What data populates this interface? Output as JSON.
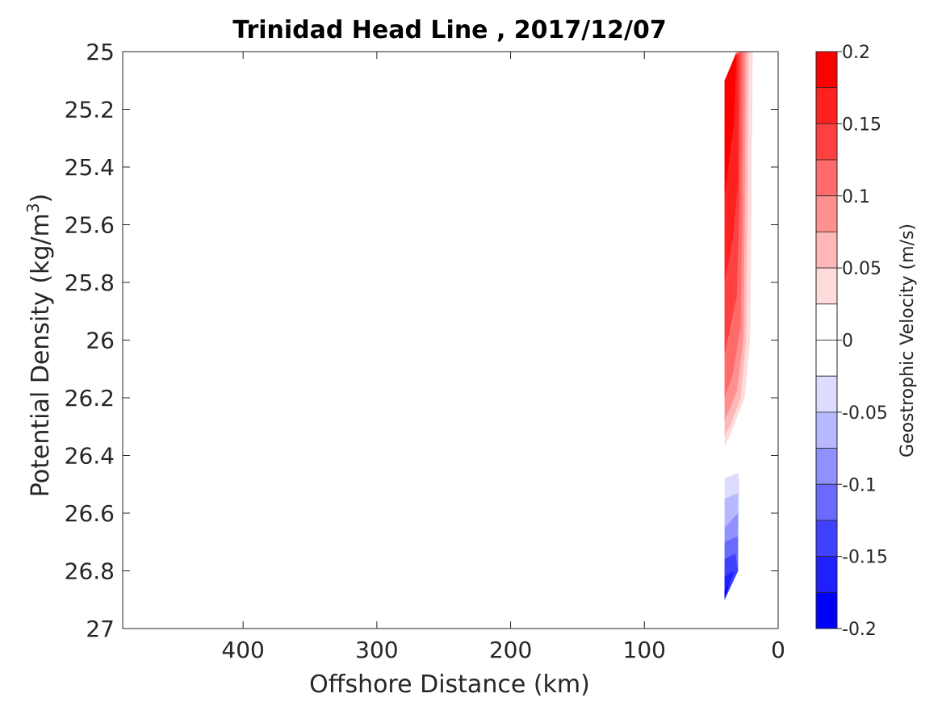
{
  "chart_data": {
    "type": "contourf",
    "title": "Trinidad Head Line , 2017/12/07",
    "xlabel": "Offshore Distance (km)",
    "ylabel_main": "Potential Density (kg/m",
    "ylabel_sup": "3",
    "ylabel_close": ")",
    "xlim": [
      490,
      0
    ],
    "x_reversed": true,
    "ylim": [
      25,
      27
    ],
    "y_reversed": true,
    "xticks": [
      400,
      300,
      200,
      100,
      0
    ],
    "xtick_labels": [
      "400",
      "300",
      "200",
      "100",
      "0"
    ],
    "yticks": [
      25,
      25.2,
      25.4,
      25.6,
      25.8,
      26,
      26.2,
      26.4,
      26.6,
      26.8,
      27
    ],
    "ytick_labels": [
      "25",
      "25.2",
      "25.4",
      "25.6",
      "25.8",
      "26",
      "26.2",
      "26.4",
      "26.6",
      "26.8",
      "27"
    ],
    "colorbar": {
      "label": "Geostrophic Velocity (m/s)",
      "range": [
        -0.2,
        0.2
      ],
      "ticks": [
        0.2,
        0.15,
        0.1,
        0.05,
        0,
        -0.05,
        -0.1,
        -0.15,
        -0.2
      ],
      "tick_labels": [
        "0.2",
        "0.15",
        "0.1",
        "0.05",
        "0",
        "-0.05",
        "-0.1",
        "-0.15",
        "-0.2"
      ],
      "levels": [
        {
          "from": 0.175,
          "to": 0.2,
          "color": "#ff0000"
        },
        {
          "from": 0.15,
          "to": 0.175,
          "color": "#ff2020"
        },
        {
          "from": 0.125,
          "to": 0.15,
          "color": "#ff4040"
        },
        {
          "from": 0.1,
          "to": 0.125,
          "color": "#ff6a6a"
        },
        {
          "from": 0.075,
          "to": 0.1,
          "color": "#ff9090"
        },
        {
          "from": 0.05,
          "to": 0.075,
          "color": "#ffb8b8"
        },
        {
          "from": 0.025,
          "to": 0.05,
          "color": "#ffdcdc"
        },
        {
          "from": 0,
          "to": 0.025,
          "color": "#ffffff"
        },
        {
          "from": -0.025,
          "to": 0,
          "color": "#ffffff"
        },
        {
          "from": -0.05,
          "to": -0.025,
          "color": "#dcdcff"
        },
        {
          "from": -0.075,
          "to": -0.05,
          "color": "#b8b8ff"
        },
        {
          "from": -0.1,
          "to": -0.075,
          "color": "#9090ff"
        },
        {
          "from": -0.125,
          "to": -0.1,
          "color": "#6a6aff"
        },
        {
          "from": -0.15,
          "to": -0.125,
          "color": "#4040ff"
        },
        {
          "from": -0.175,
          "to": -0.15,
          "color": "#2020ff"
        },
        {
          "from": -0.2,
          "to": -0.175,
          "color": "#0000ff"
        }
      ]
    },
    "contour_regions": [
      {
        "name": "positive-0.025",
        "color": "#ffdcdc",
        "points": [
          [
            40,
            25.1
          ],
          [
            26,
            25.0
          ],
          [
            19,
            25.0
          ],
          [
            20,
            25.6
          ],
          [
            21,
            26.0
          ],
          [
            25,
            26.2
          ],
          [
            35,
            26.32
          ],
          [
            40,
            26.37
          ]
        ]
      },
      {
        "name": "positive-0.05",
        "color": "#ffb8b8",
        "points": [
          [
            40,
            25.1
          ],
          [
            26,
            25.0
          ],
          [
            22,
            25.0
          ],
          [
            23,
            25.6
          ],
          [
            24,
            26.0
          ],
          [
            28,
            26.2
          ],
          [
            36,
            26.3
          ],
          [
            40,
            26.33
          ]
        ]
      },
      {
        "name": "positive-0.075",
        "color": "#ff9090",
        "points": [
          [
            40,
            25.1
          ],
          [
            27,
            25.0
          ],
          [
            24,
            25.0
          ],
          [
            25,
            25.6
          ],
          [
            26,
            26.0
          ],
          [
            31,
            26.18
          ],
          [
            40,
            26.28
          ]
        ]
      },
      {
        "name": "positive-0.1",
        "color": "#ff6a6a",
        "points": [
          [
            40,
            25.1
          ],
          [
            28,
            25.0
          ],
          [
            26,
            25.0
          ],
          [
            27,
            25.6
          ],
          [
            28,
            25.95
          ],
          [
            34,
            26.12
          ],
          [
            40,
            26.2
          ]
        ]
      },
      {
        "name": "positive-0.125",
        "color": "#ff4040",
        "points": [
          [
            40,
            25.1
          ],
          [
            29,
            25.0
          ],
          [
            28,
            25.0
          ],
          [
            29,
            25.55
          ],
          [
            31,
            25.85
          ],
          [
            40,
            26.05
          ]
        ]
      },
      {
        "name": "positive-0.15",
        "color": "#ff2020",
        "points": [
          [
            40,
            25.1
          ],
          [
            30,
            25.0
          ],
          [
            30,
            25.45
          ],
          [
            34,
            25.65
          ],
          [
            40,
            25.8
          ]
        ]
      },
      {
        "name": "positive-0.175",
        "color": "#ff0000",
        "points": [
          [
            40,
            25.1
          ],
          [
            31,
            25.0
          ],
          [
            33,
            25.25
          ],
          [
            40,
            25.5
          ]
        ]
      },
      {
        "name": "negative-0.025",
        "color": "#dcdcff",
        "points": [
          [
            40,
            26.48
          ],
          [
            30,
            26.46
          ],
          [
            29,
            26.49
          ],
          [
            30,
            26.8
          ],
          [
            40,
            26.9
          ]
        ]
      },
      {
        "name": "negative-0.05",
        "color": "#b8b8ff",
        "points": [
          [
            40,
            26.55
          ],
          [
            30,
            26.53
          ],
          [
            30,
            26.8
          ],
          [
            40,
            26.9
          ]
        ]
      },
      {
        "name": "negative-0.075",
        "color": "#9090ff",
        "points": [
          [
            40,
            26.65
          ],
          [
            30,
            26.6
          ],
          [
            30,
            26.8
          ],
          [
            40,
            26.9
          ]
        ]
      },
      {
        "name": "negative-0.1",
        "color": "#6a6aff",
        "points": [
          [
            40,
            26.7
          ],
          [
            30,
            26.68
          ],
          [
            30,
            26.8
          ],
          [
            40,
            26.9
          ]
        ]
      },
      {
        "name": "negative-0.125",
        "color": "#4040ff",
        "points": [
          [
            40,
            26.76
          ],
          [
            32,
            26.74
          ],
          [
            30,
            26.8
          ],
          [
            40,
            26.9
          ]
        ]
      },
      {
        "name": "negative-0.15",
        "color": "#2020ff",
        "points": [
          [
            40,
            26.82
          ],
          [
            33,
            26.8
          ],
          [
            40,
            26.9
          ]
        ]
      },
      {
        "name": "negative-0.175",
        "color": "#0000ff",
        "points": [
          [
            40,
            26.87
          ],
          [
            37,
            26.85
          ],
          [
            40,
            26.9
          ]
        ]
      }
    ]
  }
}
